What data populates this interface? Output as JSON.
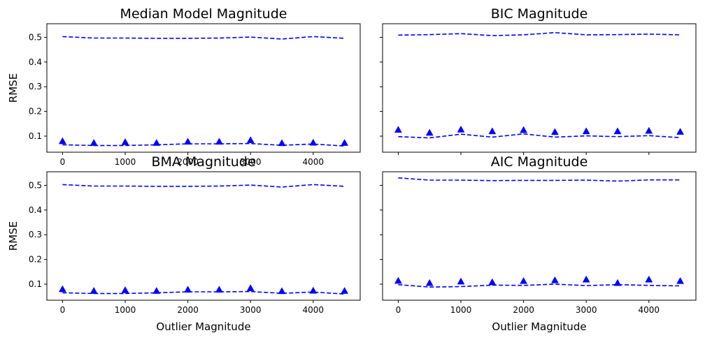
{
  "chart_data": [
    {
      "type": "line",
      "title": "Median Model Magnitude",
      "xlabel": "",
      "ylabel": "RMSE",
      "x": [
        0,
        500,
        1000,
        1500,
        2000,
        2500,
        3000,
        3500,
        4000,
        4500
      ],
      "xticks": [
        "0",
        "1000",
        "2000",
        "3000",
        "4000"
      ],
      "yticks": [
        "0.1",
        "0.2",
        "0.3",
        "0.4",
        "0.5"
      ],
      "xlim": [
        -250,
        4750
      ],
      "ylim": [
        0.035,
        0.555
      ],
      "series": [
        {
          "name": "upper dashed",
          "style": "dashed",
          "values": [
            0.503,
            0.497,
            0.497,
            0.496,
            0.496,
            0.497,
            0.501,
            0.493,
            0.503,
            0.496
          ]
        },
        {
          "name": "lower dashed",
          "style": "dashed",
          "values": [
            0.065,
            0.062,
            0.062,
            0.065,
            0.069,
            0.069,
            0.07,
            0.063,
            0.068,
            0.06
          ]
        },
        {
          "name": "triangles",
          "style": "markers",
          "values": [
            0.08,
            0.073,
            0.076,
            0.073,
            0.078,
            0.078,
            0.084,
            0.072,
            0.074,
            0.073
          ]
        }
      ]
    },
    {
      "type": "line",
      "title": "BIC Magnitude",
      "xlabel": "",
      "ylabel": "",
      "x": [
        0,
        500,
        1000,
        1500,
        2000,
        2500,
        3000,
        3500,
        4000,
        4500
      ],
      "xticks": [],
      "yticks": [],
      "xlim": [
        -250,
        4750
      ],
      "ylim": [
        0.035,
        0.555
      ],
      "series": [
        {
          "name": "upper dashed",
          "style": "dashed",
          "values": [
            0.509,
            0.511,
            0.515,
            0.507,
            0.51,
            0.519,
            0.51,
            0.511,
            0.513,
            0.51
          ]
        },
        {
          "name": "lower dashed",
          "style": "dashed",
          "values": [
            0.098,
            0.093,
            0.108,
            0.096,
            0.109,
            0.096,
            0.101,
            0.098,
            0.102,
            0.094
          ]
        },
        {
          "name": "triangles",
          "style": "markers",
          "values": [
            0.126,
            0.114,
            0.127,
            0.12,
            0.125,
            0.117,
            0.12,
            0.12,
            0.122,
            0.118
          ]
        }
      ]
    },
    {
      "type": "line",
      "title": "BMA Magnitude",
      "xlabel": "Outlier Magnitude",
      "ylabel": "RMSE",
      "x": [
        0,
        500,
        1000,
        1500,
        2000,
        2500,
        3000,
        3500,
        4000,
        4500
      ],
      "xticks": [
        "0",
        "1000",
        "2000",
        "3000",
        "4000"
      ],
      "yticks": [
        "0.1",
        "0.2",
        "0.3",
        "0.4",
        "0.5"
      ],
      "xlim": [
        -250,
        4750
      ],
      "ylim": [
        0.035,
        0.555
      ],
      "series": [
        {
          "name": "upper dashed",
          "style": "dashed",
          "values": [
            0.503,
            0.497,
            0.497,
            0.496,
            0.496,
            0.497,
            0.501,
            0.493,
            0.503,
            0.496
          ]
        },
        {
          "name": "lower dashed",
          "style": "dashed",
          "values": [
            0.065,
            0.062,
            0.062,
            0.065,
            0.069,
            0.069,
            0.07,
            0.063,
            0.068,
            0.06
          ]
        },
        {
          "name": "triangles",
          "style": "markers",
          "values": [
            0.08,
            0.073,
            0.076,
            0.073,
            0.078,
            0.078,
            0.084,
            0.072,
            0.074,
            0.073
          ]
        }
      ]
    },
    {
      "type": "line",
      "title": "AIC Magnitude",
      "xlabel": "Outlier Magnitude",
      "ylabel": "",
      "x": [
        0,
        500,
        1000,
        1500,
        2000,
        2500,
        3000,
        3500,
        4000,
        4500
      ],
      "xticks": [
        "0",
        "1000",
        "2000",
        "3000",
        "4000"
      ],
      "yticks": [],
      "xlim": [
        -250,
        4750
      ],
      "ylim": [
        0.035,
        0.555
      ],
      "series": [
        {
          "name": "upper dashed",
          "style": "dashed",
          "values": [
            0.53,
            0.521,
            0.521,
            0.519,
            0.52,
            0.52,
            0.521,
            0.517,
            0.522,
            0.522
          ]
        },
        {
          "name": "lower dashed",
          "style": "dashed",
          "values": [
            0.098,
            0.088,
            0.09,
            0.096,
            0.095,
            0.1,
            0.094,
            0.098,
            0.095,
            0.093
          ]
        },
        {
          "name": "triangles",
          "style": "markers",
          "values": [
            0.114,
            0.105,
            0.111,
            0.108,
            0.113,
            0.116,
            0.119,
            0.105,
            0.119,
            0.113
          ]
        }
      ]
    }
  ],
  "colors": {
    "line": "#0000ff",
    "marker": "#0000ff",
    "axes": "#000000"
  }
}
